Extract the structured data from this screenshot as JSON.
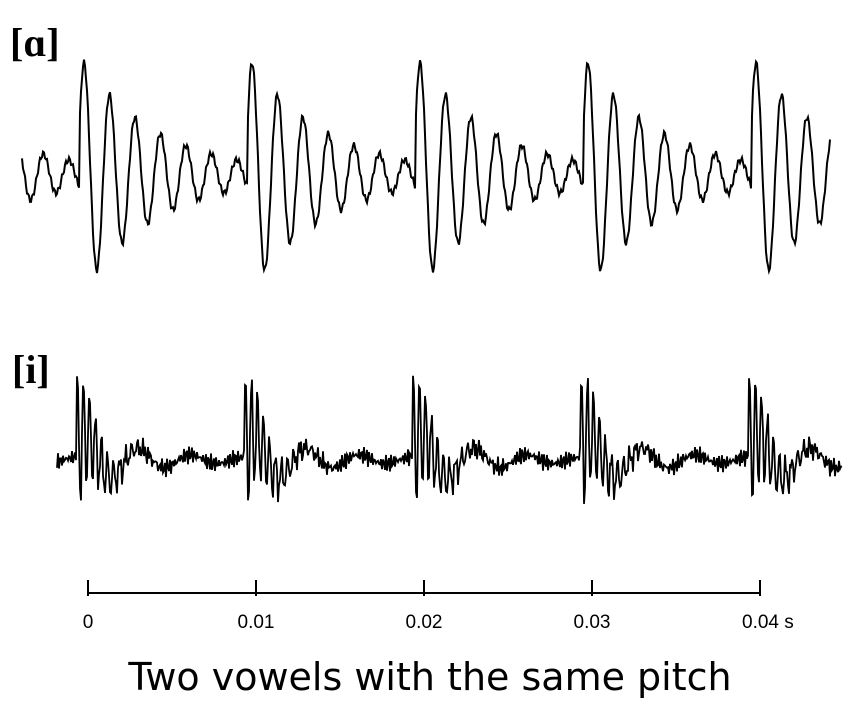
{
  "labels": {
    "top": "[ɑ]",
    "bottom": "[i]"
  },
  "axis": {
    "ticks": [
      "0",
      "0.01",
      "0.02",
      "0.03",
      "0.04 s"
    ]
  },
  "caption": "Two vowels with the same pitch"
}
